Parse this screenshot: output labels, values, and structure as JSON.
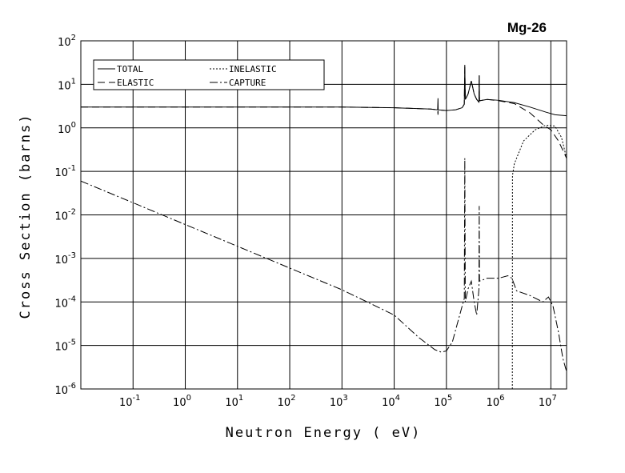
{
  "chart_data": {
    "type": "line",
    "title": "Mg-26",
    "xlabel": "Neutron Energy ( eV)",
    "ylabel": "Cross Section (barns)",
    "x_scale": "log",
    "y_scale": "log",
    "xlim": [
      0.01,
      20000000
    ],
    "ylim": [
      1e-06,
      100
    ],
    "x_ticks": [
      {
        "base": "10",
        "exp": "-1"
      },
      {
        "base": "10",
        "exp": "0"
      },
      {
        "base": "10",
        "exp": "1"
      },
      {
        "base": "10",
        "exp": "2"
      },
      {
        "base": "10",
        "exp": "3"
      },
      {
        "base": "10",
        "exp": "4"
      },
      {
        "base": "10",
        "exp": "5"
      },
      {
        "base": "10",
        "exp": "6"
      },
      {
        "base": "10",
        "exp": "7"
      }
    ],
    "y_ticks": [
      {
        "base": "10",
        "exp": "-6"
      },
      {
        "base": "10",
        "exp": "-5"
      },
      {
        "base": "10",
        "exp": "-4"
      },
      {
        "base": "10",
        "exp": "-3"
      },
      {
        "base": "10",
        "exp": "-2"
      },
      {
        "base": "10",
        "exp": "-1"
      },
      {
        "base": "10",
        "exp": "0"
      },
      {
        "base": "10",
        "exp": "1"
      },
      {
        "base": "10",
        "exp": "2"
      }
    ],
    "grid": true,
    "legend_position": "top-left",
    "series": [
      {
        "name": "TOTAL",
        "dash": "solid",
        "points": [
          [
            0.01,
            3.0
          ],
          [
            1000,
            3.0
          ],
          [
            10000,
            2.9
          ],
          [
            50000,
            2.7
          ],
          [
            68000,
            2.6
          ],
          [
            69000,
            4.8
          ],
          [
            69500,
            2.6
          ],
          [
            80000,
            2.55
          ],
          [
            100000,
            2.5
          ],
          [
            150000,
            2.6
          ],
          [
            200000,
            2.9
          ],
          [
            220000,
            3.5
          ],
          [
            225000,
            28
          ],
          [
            230000,
            4.5
          ],
          [
            260000,
            6
          ],
          [
            300000,
            12
          ],
          [
            340000,
            6
          ],
          [
            380000,
            4.5
          ],
          [
            420000,
            3.9
          ],
          [
            425000,
            16
          ],
          [
            430000,
            4.2
          ],
          [
            600000,
            4.5
          ],
          [
            1000000,
            4.3
          ],
          [
            2000000,
            3.8
          ],
          [
            4000000,
            3.0
          ],
          [
            8000000,
            2.3
          ],
          [
            12000000,
            2.0
          ],
          [
            20000000,
            1.9
          ]
        ]
      },
      {
        "name": "ELASTIC",
        "dash": "dashed",
        "points": [
          [
            0.01,
            3.0
          ],
          [
            1000,
            3.0
          ],
          [
            10000,
            2.9
          ],
          [
            50000,
            2.7
          ],
          [
            68000,
            2.6
          ],
          [
            69000,
            2.0
          ],
          [
            69500,
            2.6
          ],
          [
            80000,
            2.55
          ],
          [
            100000,
            2.5
          ],
          [
            150000,
            2.6
          ],
          [
            200000,
            2.9
          ],
          [
            220000,
            3.5
          ],
          [
            225000,
            28
          ],
          [
            230000,
            4.5
          ],
          [
            260000,
            6
          ],
          [
            300000,
            12
          ],
          [
            340000,
            6
          ],
          [
            380000,
            4.5
          ],
          [
            420000,
            3.9
          ],
          [
            425000,
            16
          ],
          [
            430000,
            4.2
          ],
          [
            600000,
            4.5
          ],
          [
            1000000,
            4.2
          ],
          [
            2000000,
            3.6
          ],
          [
            4000000,
            2.2
          ],
          [
            7000000,
            1.2
          ],
          [
            10000000,
            0.9
          ],
          [
            14000000,
            0.5
          ],
          [
            20000000,
            0.2
          ]
        ]
      },
      {
        "name": "INELASTIC",
        "dash": "dotted",
        "points": [
          [
            1830000,
            1e-06
          ],
          [
            1840000,
            0.08
          ],
          [
            2000000,
            0.15
          ],
          [
            3000000,
            0.5
          ],
          [
            5000000,
            0.9
          ],
          [
            8000000,
            1.15
          ],
          [
            12000000,
            1.1
          ],
          [
            16000000,
            0.6
          ],
          [
            20000000,
            0.2
          ]
        ]
      },
      {
        "name": "CAPTURE",
        "dash": "dashdot",
        "points": [
          [
            0.01,
            0.06
          ],
          [
            0.1,
            0.019
          ],
          [
            1,
            0.006
          ],
          [
            10,
            0.0019
          ],
          [
            100,
            0.0006
          ],
          [
            1000,
            0.00019
          ],
          [
            10000,
            5e-05
          ],
          [
            30000,
            1.5e-05
          ],
          [
            60000,
            8e-06
          ],
          [
            80000,
            7e-06
          ],
          [
            100000,
            7.5e-06
          ],
          [
            130000,
            1.2e-05
          ],
          [
            160000,
            3e-05
          ],
          [
            200000,
            8e-05
          ],
          [
            220000,
            0.00012
          ],
          [
            225000,
            0.2
          ],
          [
            230000,
            0.0001
          ],
          [
            260000,
            0.0002
          ],
          [
            300000,
            0.0003
          ],
          [
            340000,
            0.0001
          ],
          [
            380000,
            5e-05
          ],
          [
            420000,
            0.0002
          ],
          [
            425000,
            0.016
          ],
          [
            430000,
            0.0003
          ],
          [
            600000,
            0.00035
          ],
          [
            1000000,
            0.00035
          ],
          [
            1500000,
            0.0004
          ],
          [
            1800000,
            0.00035
          ],
          [
            2200000,
            0.00018
          ],
          [
            4000000,
            0.00014
          ],
          [
            7000000,
            0.0001
          ],
          [
            9000000,
            0.00013
          ],
          [
            11000000,
            8e-05
          ],
          [
            14000000,
            2e-05
          ],
          [
            17000000,
            5e-06
          ],
          [
            20000000,
            2.5e-06
          ]
        ]
      }
    ]
  }
}
